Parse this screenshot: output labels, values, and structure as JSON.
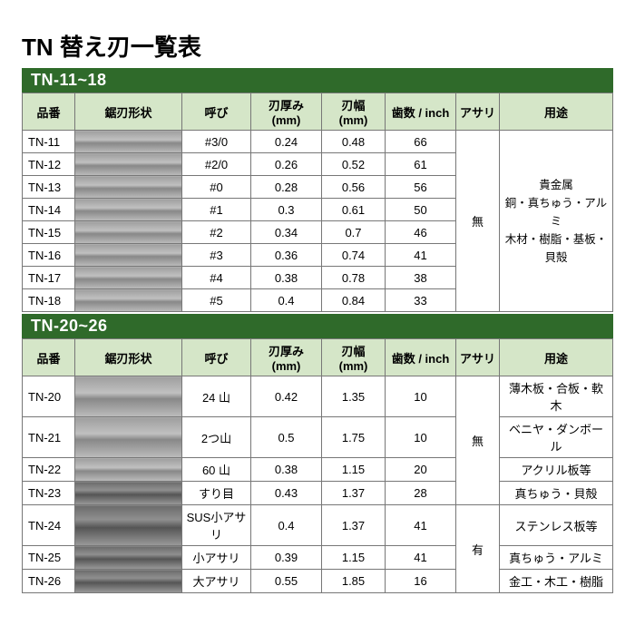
{
  "title": "TN 替え刃一覧表",
  "section1": {
    "header": "TN-11~18",
    "columns": [
      "品番",
      "鋸刃形状",
      "呼び",
      "刃厚み (mm)",
      "刃幅 (mm)",
      "歯数 / inch",
      "アサリ",
      "用途"
    ],
    "rows": [
      {
        "num": "TN-11",
        "call": "#3/0",
        "thick": "0.24",
        "width": "0.48",
        "teeth": "66"
      },
      {
        "num": "TN-12",
        "call": "#2/0",
        "thick": "0.26",
        "width": "0.52",
        "teeth": "61"
      },
      {
        "num": "TN-13",
        "call": "#0",
        "thick": "0.28",
        "width": "0.56",
        "teeth": "56"
      },
      {
        "num": "TN-14",
        "call": "#1",
        "thick": "0.3",
        "width": "0.61",
        "teeth": "50"
      },
      {
        "num": "TN-15",
        "call": "#2",
        "thick": "0.34",
        "width": "0.7",
        "teeth": "46"
      },
      {
        "num": "TN-16",
        "call": "#3",
        "thick": "0.36",
        "width": "0.74",
        "teeth": "41"
      },
      {
        "num": "TN-17",
        "call": "#4",
        "thick": "0.38",
        "width": "0.78",
        "teeth": "38"
      },
      {
        "num": "TN-18",
        "call": "#5",
        "thick": "0.4",
        "width": "0.84",
        "teeth": "33"
      }
    ],
    "asari": "無",
    "usage_lines": [
      "貴金属",
      "銅・真ちゅう・アルミ",
      "木材・樹脂・基板・貝殻"
    ]
  },
  "section2": {
    "header": "TN-20~26",
    "columns": [
      "品番",
      "鋸刃形状",
      "呼び",
      "刃厚み (mm)",
      "刃幅 (mm)",
      "歯数 / inch",
      "アサリ",
      "用途"
    ],
    "rows": [
      {
        "num": "TN-20",
        "call": "24 山",
        "thick": "0.42",
        "width": "1.35",
        "teeth": "10",
        "usage": "薄木板・合板・軟木"
      },
      {
        "num": "TN-21",
        "call": "2つ山",
        "thick": "0.5",
        "width": "1.75",
        "teeth": "10",
        "usage": "ベニヤ・ダンボール"
      },
      {
        "num": "TN-22",
        "call": "60 山",
        "thick": "0.38",
        "width": "1.15",
        "teeth": "20",
        "usage": "アクリル板等"
      },
      {
        "num": "TN-23",
        "call": "すり目",
        "thick": "0.43",
        "width": "1.37",
        "teeth": "28",
        "usage": "真ちゅう・貝殻"
      },
      {
        "num": "TN-24",
        "call": "SUS小アサリ",
        "thick": "0.4",
        "width": "1.37",
        "teeth": "41",
        "usage": "ステンレス板等"
      },
      {
        "num": "TN-25",
        "call": "小アサリ",
        "thick": "0.39",
        "width": "1.15",
        "teeth": "41",
        "usage": "真ちゅう・アルミ"
      },
      {
        "num": "TN-26",
        "call": "大アサリ",
        "thick": "0.55",
        "width": "1.85",
        "teeth": "16",
        "usage": "金工・木工・樹脂"
      }
    ],
    "asari_top": "無",
    "asari_bottom": "有"
  },
  "colors": {
    "header_green": "#2f6a2a",
    "th_green": "#d5e6c8",
    "border": "#777777",
    "bg": "#ffffff"
  }
}
